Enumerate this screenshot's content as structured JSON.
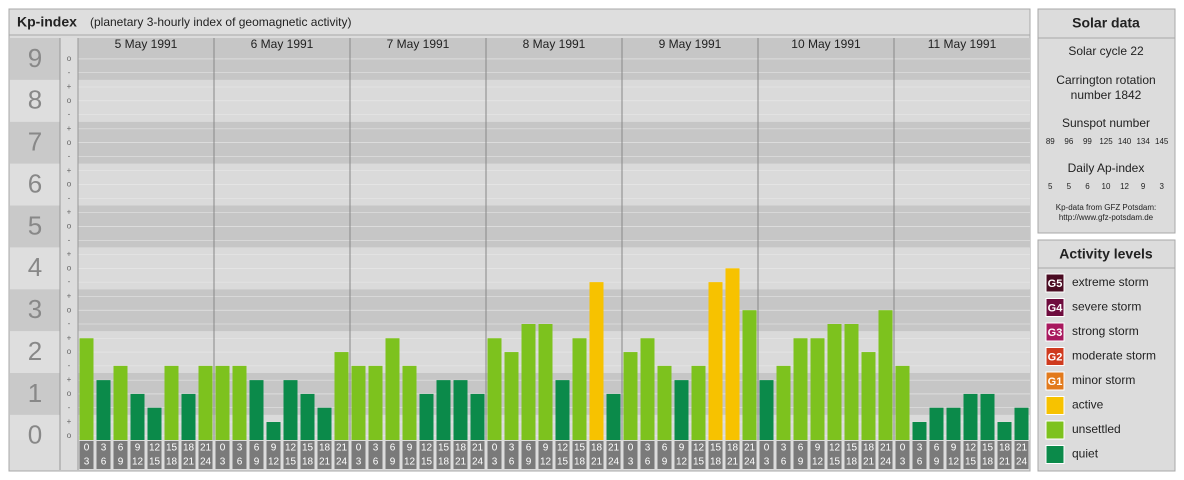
{
  "chart_data": {
    "type": "bar",
    "title": "Kp-index",
    "subtitle": "(planetary 3-hourly index of geomagnetic activity)",
    "days": [
      "5 May 1991",
      "6 May 1991",
      "7 May 1991",
      "8 May 1991",
      "9 May 1991",
      "10 May 1991",
      "11 May 1991"
    ],
    "hours": [
      [
        0,
        3
      ],
      [
        3,
        6
      ],
      [
        6,
        9
      ],
      [
        9,
        12
      ],
      [
        12,
        15
      ],
      [
        15,
        18
      ],
      [
        18,
        21
      ],
      [
        21,
        24
      ]
    ],
    "values": [
      2.33,
      1.33,
      1.67,
      1,
      0.67,
      1.67,
      1,
      1.67,
      1.67,
      1.67,
      1.33,
      0.33,
      1.33,
      1,
      0.67,
      2,
      1.67,
      1.67,
      2.33,
      1.67,
      1,
      1.33,
      1.33,
      1,
      2.33,
      2,
      2.67,
      2.67,
      1.33,
      2.33,
      3.67,
      1,
      2,
      2.33,
      1.67,
      1.33,
      1.67,
      3.67,
      4,
      3,
      1.33,
      1.67,
      2.33,
      2.33,
      2.67,
      2.67,
      2,
      3,
      1.67,
      0.33,
      0.67,
      0.67,
      1,
      1,
      0.33,
      0.67
    ],
    "colors": [
      "#7dc21e",
      "#0b8a4a",
      "#7dc21e",
      "#0b8a4a",
      "#0b8a4a",
      "#7dc21e",
      "#0b8a4a",
      "#7dc21e",
      "#7dc21e",
      "#7dc21e",
      "#0b8a4a",
      "#0b8a4a",
      "#0b8a4a",
      "#0b8a4a",
      "#0b8a4a",
      "#7dc21e",
      "#7dc21e",
      "#7dc21e",
      "#7dc21e",
      "#7dc21e",
      "#0b8a4a",
      "#0b8a4a",
      "#0b8a4a",
      "#0b8a4a",
      "#7dc21e",
      "#7dc21e",
      "#7dc21e",
      "#7dc21e",
      "#0b8a4a",
      "#7dc21e",
      "#f7c200",
      "#0b8a4a",
      "#7dc21e",
      "#7dc21e",
      "#7dc21e",
      "#0b8a4a",
      "#7dc21e",
      "#f7c200",
      "#f7c200",
      "#7dc21e",
      "#0b8a4a",
      "#7dc21e",
      "#7dc21e",
      "#7dc21e",
      "#7dc21e",
      "#7dc21e",
      "#7dc21e",
      "#7dc21e",
      "#7dc21e",
      "#0b8a4a",
      "#0b8a4a",
      "#0b8a4a",
      "#0b8a4a",
      "#0b8a4a",
      "#0b8a4a",
      "#0b8a4a"
    ],
    "ylim": [
      -0.1,
      9.5
    ],
    "yticks": [
      0,
      1,
      2,
      3,
      4,
      5,
      6,
      7,
      8,
      9
    ],
    "yminor": [
      {
        "value": 0,
        "label": "o"
      },
      {
        "value": 0.33,
        "label": "+"
      },
      {
        "value": 0.67,
        "label": "-"
      },
      {
        "value": 1,
        "label": "o"
      },
      {
        "value": 1.33,
        "label": "+"
      },
      {
        "value": 1.67,
        "label": "-"
      },
      {
        "value": 2,
        "label": "o"
      },
      {
        "value": 2.33,
        "label": "+"
      },
      {
        "value": 2.67,
        "label": "-"
      },
      {
        "value": 3,
        "label": "o"
      },
      {
        "value": 3.33,
        "label": "+"
      },
      {
        "value": 3.67,
        "label": "-"
      },
      {
        "value": 4,
        "label": "o"
      },
      {
        "value": 4.33,
        "label": "+"
      },
      {
        "value": 4.67,
        "label": "-"
      },
      {
        "value": 5,
        "label": "o"
      },
      {
        "value": 5.33,
        "label": "+"
      },
      {
        "value": 5.67,
        "label": "-"
      },
      {
        "value": 6,
        "label": "o"
      },
      {
        "value": 6.33,
        "label": "+"
      },
      {
        "value": 6.67,
        "label": "-"
      },
      {
        "value": 7,
        "label": "o"
      },
      {
        "value": 7.33,
        "label": "+"
      },
      {
        "value": 7.67,
        "label": "-"
      },
      {
        "value": 8,
        "label": "o"
      },
      {
        "value": 8.33,
        "label": "+"
      },
      {
        "value": 8.67,
        "label": "-"
      },
      {
        "value": 9,
        "label": "o"
      }
    ]
  },
  "solar_data": {
    "title": "Solar data",
    "cycle": "Solar cycle 22",
    "carrington": [
      "Carrington rotation",
      "number 1842"
    ],
    "sunspot_title": "Sunspot number",
    "sunspot": [
      89,
      96,
      99,
      125,
      140,
      134,
      145
    ],
    "ap_title": "Daily Ap-index",
    "ap": [
      5,
      5,
      6,
      10,
      12,
      9,
      3
    ],
    "source": "Kp-data from GFZ Potsdam:",
    "url": "http://www.gfz-potsdam.de"
  },
  "activity_levels": {
    "title": "Activity levels",
    "items": [
      {
        "badge": "G5",
        "name": "extreme storm",
        "color": "#4a0b22"
      },
      {
        "badge": "G4",
        "name": "severe storm",
        "color": "#6e0c3e"
      },
      {
        "badge": "G3",
        "name": "strong storm",
        "color": "#a8185e"
      },
      {
        "badge": "G2",
        "name": "moderate storm",
        "color": "#cf3a1e"
      },
      {
        "badge": "G1",
        "name": "minor storm",
        "color": "#e27a1c"
      },
      {
        "name": "active",
        "color": "#f7c200"
      },
      {
        "name": "unsettled",
        "color": "#7dc21e"
      },
      {
        "name": "quiet",
        "color": "#0b8a4a"
      }
    ]
  }
}
